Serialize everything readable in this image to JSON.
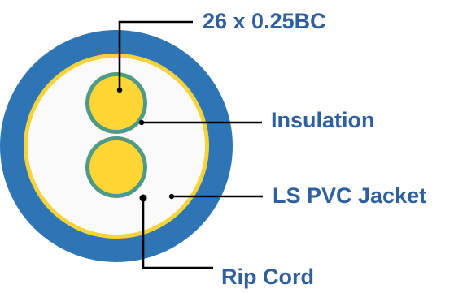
{
  "colors": {
    "label_text": "#2F5F9E",
    "outer_jacket": "#2E75B6",
    "yellow_ring": "#F7D33A",
    "filler": "#FAFAFA",
    "insulation_ring": "#4E9A86",
    "conductor": "#FFD633",
    "leader_line": "#000000"
  },
  "labels": {
    "conductor": "26 x 0.25BC",
    "insulation": "Insulation",
    "jacket": "LS PVC Jacket",
    "rip_cord": "Rip Cord"
  },
  "icons": {
    "leader_marker": "dot"
  }
}
